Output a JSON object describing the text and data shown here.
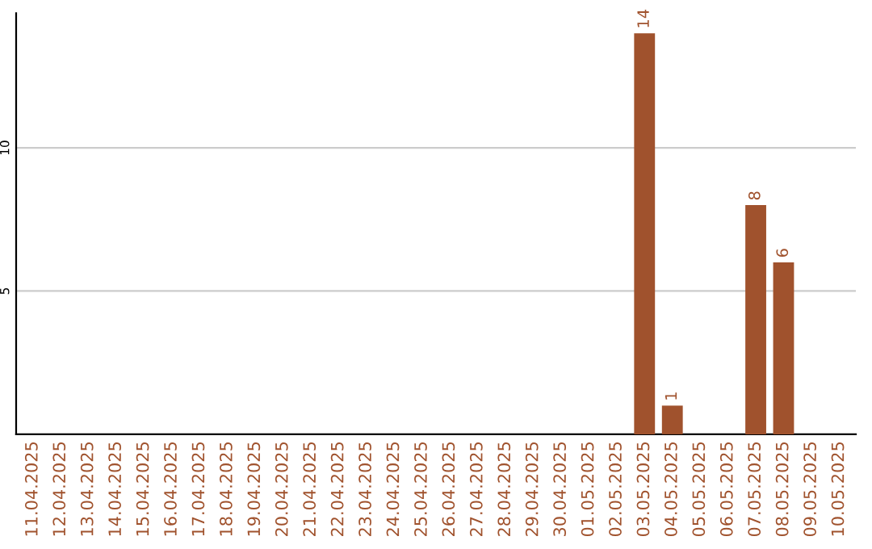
{
  "chart_data": {
    "type": "bar",
    "categories": [
      "11.04.2025",
      "12.04.2025",
      "13.04.2025",
      "14.04.2025",
      "15.04.2025",
      "16.04.2025",
      "17.04.2025",
      "18.04.2025",
      "19.04.2025",
      "20.04.2025",
      "21.04.2025",
      "22.04.2025",
      "23.04.2025",
      "24.04.2025",
      "25.04.2025",
      "26.04.2025",
      "27.04.2025",
      "28.04.2025",
      "29.04.2025",
      "30.04.2025",
      "01.05.2025",
      "02.05.2025",
      "03.05.2025",
      "04.05.2025",
      "05.05.2025",
      "06.05.2025",
      "07.05.2025",
      "08.05.2025",
      "09.05.2025",
      "10.05.2025"
    ],
    "values": [
      0,
      0,
      0,
      0,
      0,
      0,
      0,
      0,
      0,
      0,
      0,
      0,
      0,
      0,
      0,
      0,
      0,
      0,
      0,
      0,
      0,
      0,
      14,
      1,
      0,
      0,
      8,
      6,
      0,
      0
    ],
    "value_labels": [
      null,
      null,
      null,
      null,
      null,
      null,
      null,
      null,
      null,
      null,
      null,
      null,
      null,
      null,
      null,
      null,
      null,
      null,
      null,
      null,
      null,
      null,
      "14",
      "1",
      null,
      null,
      "8",
      "6",
      null,
      null
    ],
    "color": "#a0522d",
    "ylim": [
      0,
      14.7
    ],
    "yticks": [
      5,
      10
    ],
    "grid": "y"
  }
}
